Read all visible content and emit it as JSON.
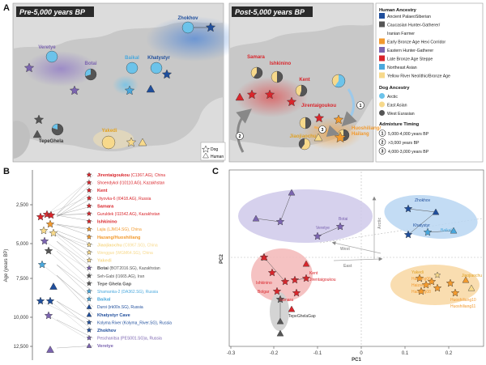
{
  "panels": {
    "a": "A",
    "b": "B",
    "c": "C"
  },
  "map_titles": {
    "pre": "Pre-5,000 years BP",
    "post": "Post-5,000 years BP"
  },
  "map_pre_labels": {
    "zhokhov": "Zhokhov",
    "veretye": "Veretye",
    "botai": "Botai",
    "baikal": "Baikal",
    "khatystyr": "Khatystyr",
    "tepeghela": "TepeGhela",
    "yakedi": "Yakedi"
  },
  "map_post_labels": {
    "samara": "Samara",
    "ishkinino": "Ishkinino",
    "kent": "Kent",
    "jirentaigoukou": "Jirentaigoukou",
    "huoshiliang": "Huoshiliang/",
    "hailang": "Hailang",
    "jiaojiaochu": "Jiaojiaochu"
  },
  "arrow_nums": {
    "n1": "1",
    "n2": "2",
    "n3": "3"
  },
  "map_legend": {
    "dog": "Dog",
    "human": "Human"
  },
  "legend": {
    "human_title": "Human Ancestry",
    "human_items": [
      {
        "label": "Ancient PalaeoSiberian",
        "color": "#1f4e9c"
      },
      {
        "label": "Caucasian Hunter-Gatherer/",
        "color": "#555555"
      },
      {
        "label": "Iranian Farmer",
        "color": ""
      },
      {
        "label": "Early Bronze Age Hexi Corridor",
        "color": "#f29a2e"
      },
      {
        "label": "Eastern Hunter-Gatherer",
        "color": "#7b64b0"
      },
      {
        "label": "Late Bronze Age Steppe",
        "color": "#d9252b"
      },
      {
        "label": "Northeast Asian",
        "color": "#4aa8dd"
      },
      {
        "label": "Yellow River Neolithic/Bronze Age",
        "color": "#f7d98b"
      }
    ],
    "dog_title": "Dog Ancestry",
    "dog_items": [
      {
        "label": "Arctic",
        "color": "#6cc3ea"
      },
      {
        "label": "East Asian",
        "color": "#f7d98b"
      },
      {
        "label": "West Eurasian",
        "color": "#555555"
      }
    ],
    "timing_title": "Admixture Timing",
    "timing_items": [
      {
        "num": "1",
        "label": "5,000-4,000 years BP"
      },
      {
        "num": "2",
        "label": ">3,000 years BP"
      },
      {
        "num": "3",
        "label": "4,000-3,000 years BP"
      }
    ]
  },
  "timeline": {
    "ylabel": "Age (years BP)",
    "ticks": [
      "2,500",
      "5,000",
      "7,500",
      "10,000",
      "12,500"
    ],
    "entries": [
      {
        "bold": "Jirentaigoukou",
        "rest": " (C1367.AG), China",
        "color": "#d9252b"
      },
      {
        "bold": "",
        "rest": "Shoendykol (I10110.AG), Kazakhstan",
        "color": "#d9252b"
      },
      {
        "bold": "Kent",
        "rest": "",
        "color": "#d9252b"
      },
      {
        "bold": "",
        "rest": "Utyovka-6 (I0418.AG), Russia",
        "color": "#d9252b"
      },
      {
        "bold": "Samara",
        "rest": "",
        "color": "#d9252b"
      },
      {
        "bold": "",
        "rest": "Guruldek (I11542.AG), Kazakhstan",
        "color": "#d9252b"
      },
      {
        "bold": "Ishkinino",
        "rest": "",
        "color": "#d9252b"
      },
      {
        "bold": "",
        "rest": "Lajia (LJM14.SG), China",
        "color": "#f29a2e"
      },
      {
        "bold": "Hazang/Huoshiliang",
        "rest": "",
        "color": "#f29a2e"
      },
      {
        "bold": "Jiaojiaochu",
        "rest": " (C6967.SG), China",
        "color": "#f7d98b"
      },
      {
        "bold": "",
        "rest": "Wengguo (WGM64.SG), China",
        "color": "#f7d98b"
      },
      {
        "bold": "Yakedi",
        "rest": "",
        "color": "#f7d98b"
      },
      {
        "bold": "Botai",
        "rest": " (BOT2016.SG), Kazakhstan",
        "color": "#555555"
      },
      {
        "bold": "",
        "rest": "Seh-Gabi (I1665.AG), Iran",
        "color": "#555555"
      },
      {
        "bold": "Tepe Ghela Gap",
        "rest": "",
        "color": "#555555"
      },
      {
        "bold": "",
        "rest": "Shamanka-2 (DA362.SG), Russia",
        "color": "#4aa8dd"
      },
      {
        "bold": "Baikal",
        "rest": "",
        "color": "#4aa8dd"
      },
      {
        "bold": "",
        "rest": "Duroi (irk00x.SG), Russia",
        "color": "#1f4e9c"
      },
      {
        "bold": "Khatystyr Cave",
        "rest": "",
        "color": "#1f4e9c"
      },
      {
        "bold": "",
        "rest": "Kolyma River (Kolyma_River.SG), Russia",
        "color": "#1f4e9c"
      },
      {
        "bold": "Zhokhov",
        "rest": "",
        "color": "#1f4e9c"
      },
      {
        "bold": "",
        "rest": "Peschanitsa (PES001.SG)a, Russia",
        "color": "#7b64b0"
      },
      {
        "bold": "Veretye",
        "rest": "",
        "color": "#7b64b0"
      }
    ]
  },
  "pca": {
    "xlabel": "PC1",
    "ylabel": "PC2",
    "xticks": [
      "-0.3",
      "-0.2",
      "-0.1",
      "0",
      "0.1",
      "0.2"
    ],
    "arrows": {
      "arctic": "Arctic",
      "west": "West",
      "east": "East"
    },
    "labels": {
      "botai": "Botai",
      "veretye": "Veretye",
      "zhokhov": "Zhokhov",
      "khatystyr": "Khatystyr",
      "baikal": "Baikal",
      "ishkinino": "Ishkinino",
      "bolgar": "Bolgar",
      "samara": "Samara",
      "kent": "Kent",
      "jirentaigoukou": "Jirentaigoukou",
      "tepeghelagap": "TepeGhelaGap",
      "yakedi": "Yakedi",
      "haizang06": "Haizang06",
      "haizang15": "Haizang15",
      "haizang08": "Haizang08",
      "jiaojiaochu": "Jiaojiaochu",
      "huoshiliang10": "Huoshiliang10",
      "huoshiliang11": "Huoshiliang11"
    }
  }
}
